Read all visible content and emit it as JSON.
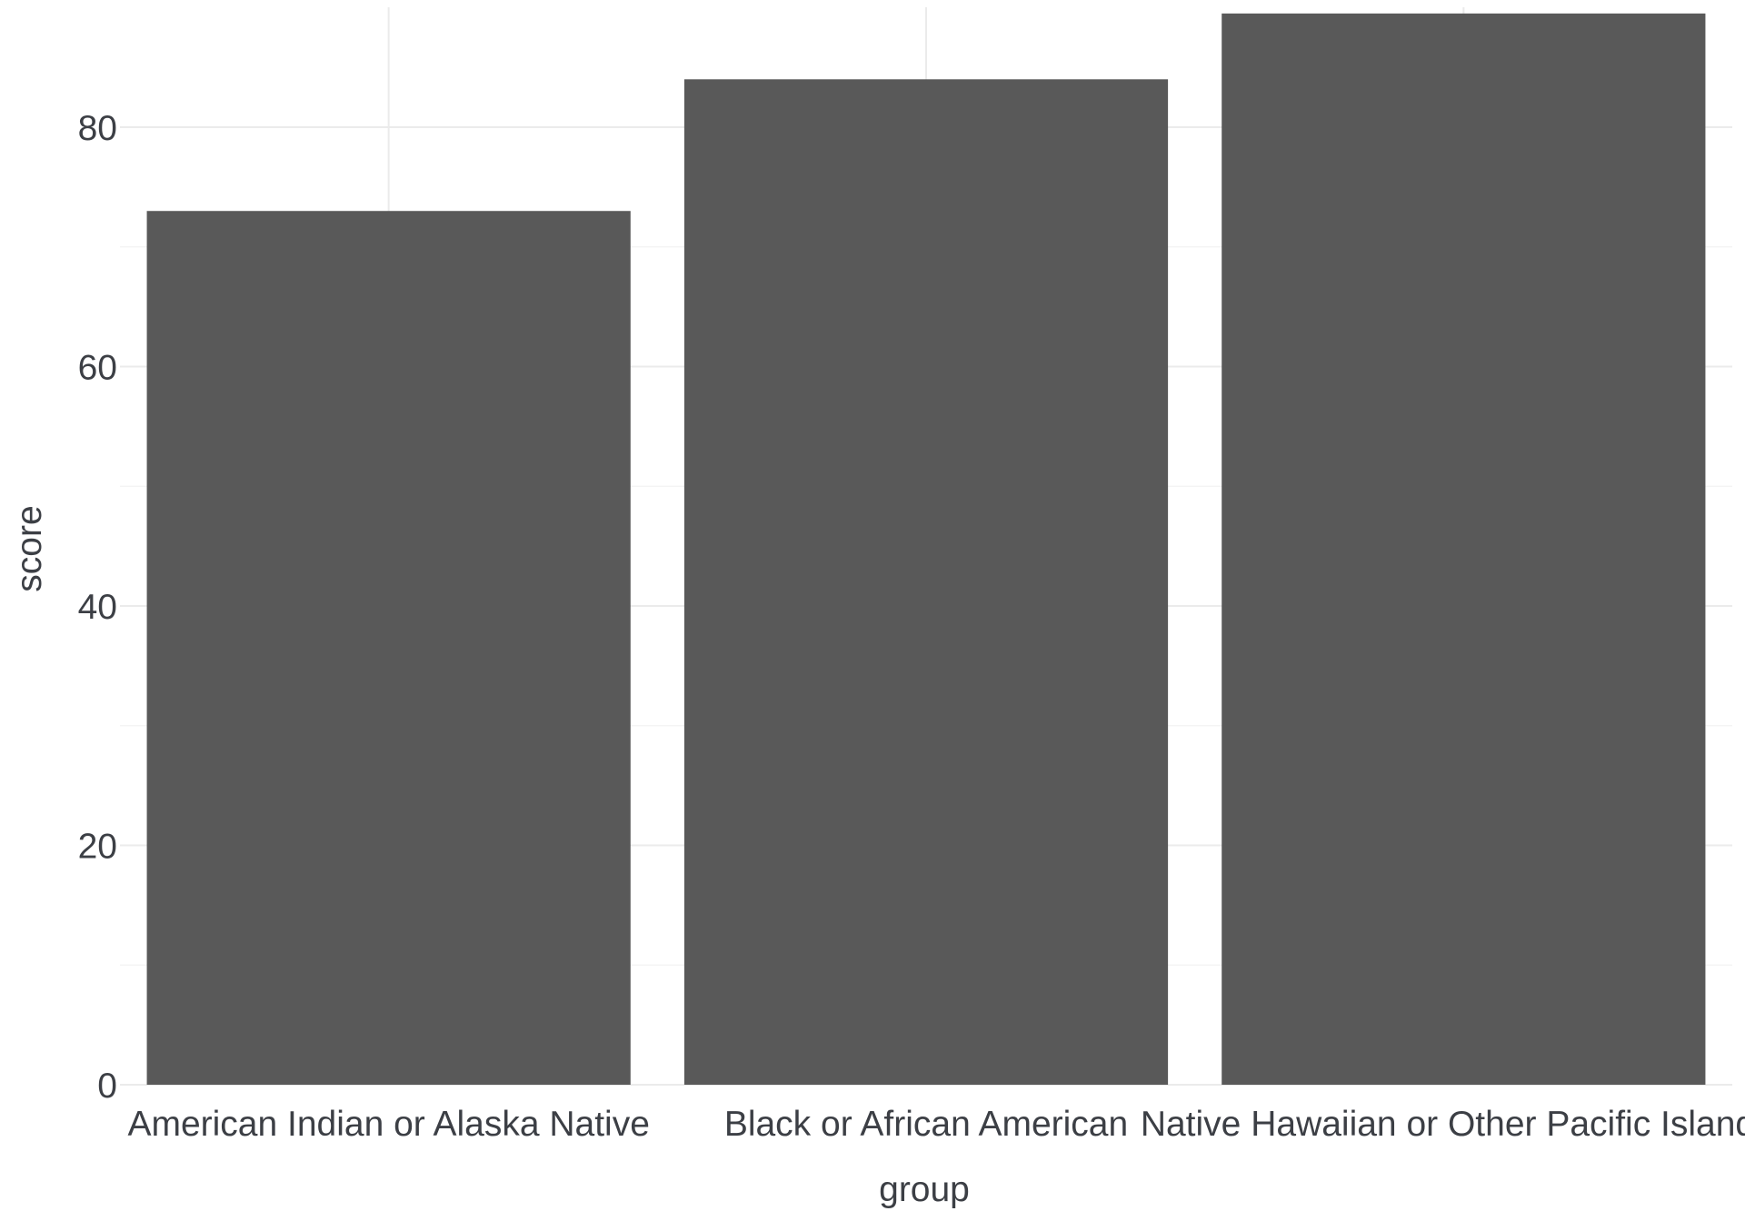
{
  "chart_data": {
    "type": "bar",
    "categories": [
      "American Indian or Alaska Native",
      "Black or African American",
      "Native Hawaiian or Other Pacific Islander"
    ],
    "values": [
      73,
      84,
      89.5
    ],
    "title": "",
    "xlabel": "group",
    "ylabel": "score",
    "ylim": [
      0,
      91
    ],
    "yticks": [
      0,
      20,
      40,
      60,
      80
    ],
    "grid": true,
    "legend": "none",
    "bar_color": "#595959",
    "text_color": "#3c3f45",
    "grid_color": "#ebebeb"
  }
}
